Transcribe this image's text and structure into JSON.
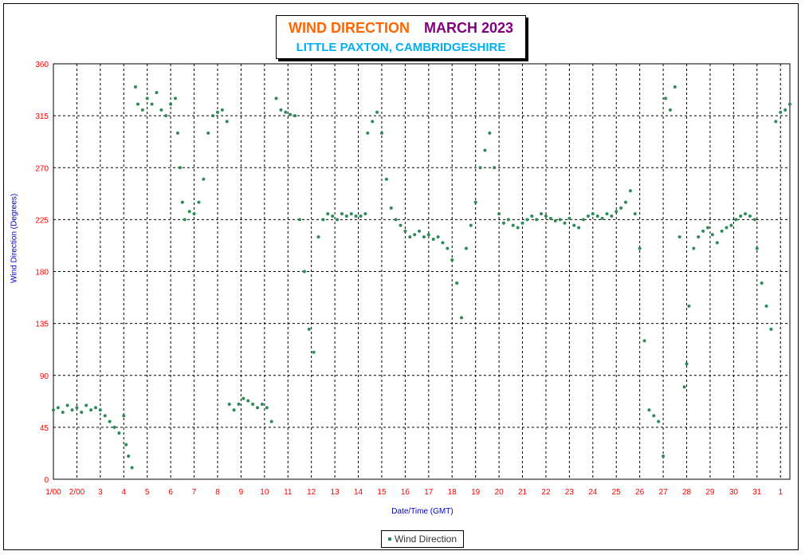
{
  "title": {
    "part1": "WIND DIRECTION",
    "part2": "MARCH 2023",
    "subtitle": "LITTLE PAXTON, CAMBRIDGESHIRE"
  },
  "colors": {
    "title_part1": "#ff6600",
    "title_part2": "#800080",
    "subtitle": "#00b0f0",
    "axis_labels": "#0000cc",
    "tick_labels": "#ff0000",
    "series": "#2e8b57"
  },
  "chart_data": {
    "type": "scatter",
    "xlabel": "Date/Time (GMT)",
    "ylabel": "Wind Direction (Degrees)",
    "ylim": [
      0,
      360
    ],
    "xlim": [
      0,
      31.4
    ],
    "y_ticks": [
      0,
      45,
      90,
      135,
      180,
      225,
      270,
      315,
      360
    ],
    "x_tick_labels": [
      "1/00",
      "2/00",
      "3",
      "4",
      "5",
      "6",
      "7",
      "8",
      "9",
      "10",
      "11",
      "12",
      "13",
      "14",
      "15",
      "16",
      "17",
      "18",
      "19",
      "20",
      "21",
      "22",
      "23",
      "24",
      "25",
      "26",
      "27",
      "28",
      "29",
      "30",
      "31",
      "1"
    ],
    "grid": true,
    "legend_position": "bottom-center",
    "series": [
      {
        "name": "Wind Direction",
        "x_units": "days since 1 March 2023 00:00",
        "points": [
          [
            0.0,
            60
          ],
          [
            0.2,
            62
          ],
          [
            0.4,
            58
          ],
          [
            0.6,
            64
          ],
          [
            0.8,
            60
          ],
          [
            1.0,
            62
          ],
          [
            1.2,
            58
          ],
          [
            1.4,
            64
          ],
          [
            1.6,
            60
          ],
          [
            1.8,
            62
          ],
          [
            2.0,
            60
          ],
          [
            2.2,
            55
          ],
          [
            2.4,
            50
          ],
          [
            2.6,
            45
          ],
          [
            2.8,
            40
          ],
          [
            3.0,
            55
          ],
          [
            3.1,
            30
          ],
          [
            3.2,
            20
          ],
          [
            3.35,
            10
          ],
          [
            3.5,
            340
          ],
          [
            3.6,
            325
          ],
          [
            3.8,
            320
          ],
          [
            4.0,
            330
          ],
          [
            4.2,
            325
          ],
          [
            4.4,
            335
          ],
          [
            4.6,
            320
          ],
          [
            4.8,
            315
          ],
          [
            5.0,
            325
          ],
          [
            5.2,
            330
          ],
          [
            5.3,
            300
          ],
          [
            5.4,
            270
          ],
          [
            5.5,
            240
          ],
          [
            5.6,
            225
          ],
          [
            5.8,
            232
          ],
          [
            6.0,
            230
          ],
          [
            6.2,
            240
          ],
          [
            6.4,
            260
          ],
          [
            6.6,
            300
          ],
          [
            6.8,
            315
          ],
          [
            7.0,
            318
          ],
          [
            7.2,
            320
          ],
          [
            7.4,
            310
          ],
          [
            7.5,
            65
          ],
          [
            7.7,
            60
          ],
          [
            7.9,
            65
          ],
          [
            8.1,
            70
          ],
          [
            8.3,
            68
          ],
          [
            8.5,
            65
          ],
          [
            8.7,
            62
          ],
          [
            8.9,
            65
          ],
          [
            9.1,
            62
          ],
          [
            9.3,
            50
          ],
          [
            9.5,
            330
          ],
          [
            9.7,
            320
          ],
          [
            9.9,
            318
          ],
          [
            10.1,
            316
          ],
          [
            10.3,
            315
          ],
          [
            10.5,
            225
          ],
          [
            10.7,
            180
          ],
          [
            10.9,
            130
          ],
          [
            11.1,
            110
          ],
          [
            11.3,
            210
          ],
          [
            11.5,
            225
          ],
          [
            11.7,
            230
          ],
          [
            11.9,
            228
          ],
          [
            12.1,
            225
          ],
          [
            12.3,
            230
          ],
          [
            12.5,
            228
          ],
          [
            12.7,
            230
          ],
          [
            12.9,
            228
          ],
          [
            13.1,
            228
          ],
          [
            13.3,
            230
          ],
          [
            13.4,
            300
          ],
          [
            13.6,
            310
          ],
          [
            13.8,
            318
          ],
          [
            14.0,
            300
          ],
          [
            14.2,
            260
          ],
          [
            14.4,
            235
          ],
          [
            14.6,
            225
          ],
          [
            14.8,
            220
          ],
          [
            15.0,
            215
          ],
          [
            15.2,
            210
          ],
          [
            15.4,
            212
          ],
          [
            15.6,
            215
          ],
          [
            15.8,
            210
          ],
          [
            16.0,
            212
          ],
          [
            16.2,
            208
          ],
          [
            16.4,
            210
          ],
          [
            16.6,
            205
          ],
          [
            16.8,
            200
          ],
          [
            17.0,
            190
          ],
          [
            17.2,
            170
          ],
          [
            17.4,
            140
          ],
          [
            17.6,
            200
          ],
          [
            17.8,
            220
          ],
          [
            18.0,
            240
          ],
          [
            18.2,
            270
          ],
          [
            18.4,
            285
          ],
          [
            18.6,
            300
          ],
          [
            18.8,
            270
          ],
          [
            19.0,
            230
          ],
          [
            19.2,
            222
          ],
          [
            19.4,
            225
          ],
          [
            19.6,
            220
          ],
          [
            19.8,
            218
          ],
          [
            20.0,
            222
          ],
          [
            20.2,
            225
          ],
          [
            20.4,
            228
          ],
          [
            20.6,
            225
          ],
          [
            20.8,
            230
          ],
          [
            21.0,
            228
          ],
          [
            21.2,
            226
          ],
          [
            21.4,
            224
          ],
          [
            21.6,
            225
          ],
          [
            21.8,
            222
          ],
          [
            22.0,
            226
          ],
          [
            22.2,
            220
          ],
          [
            22.4,
            218
          ],
          [
            22.6,
            225
          ],
          [
            22.8,
            228
          ],
          [
            23.0,
            230
          ],
          [
            23.2,
            228
          ],
          [
            23.4,
            226
          ],
          [
            23.6,
            230
          ],
          [
            23.8,
            228
          ],
          [
            24.0,
            232
          ],
          [
            24.2,
            235
          ],
          [
            24.4,
            240
          ],
          [
            24.6,
            250
          ],
          [
            24.8,
            230
          ],
          [
            25.0,
            200
          ],
          [
            25.2,
            120
          ],
          [
            25.4,
            60
          ],
          [
            25.6,
            55
          ],
          [
            25.8,
            50
          ],
          [
            26.0,
            20
          ],
          [
            26.1,
            330
          ],
          [
            26.3,
            320
          ],
          [
            26.5,
            340
          ],
          [
            26.7,
            210
          ],
          [
            26.9,
            80
          ],
          [
            27.0,
            100
          ],
          [
            27.1,
            150
          ],
          [
            27.3,
            200
          ],
          [
            27.5,
            210
          ],
          [
            27.7,
            215
          ],
          [
            27.9,
            218
          ],
          [
            28.1,
            212
          ],
          [
            28.3,
            205
          ],
          [
            28.5,
            215
          ],
          [
            28.7,
            218
          ],
          [
            28.9,
            220
          ],
          [
            29.1,
            225
          ],
          [
            29.3,
            228
          ],
          [
            29.5,
            230
          ],
          [
            29.7,
            228
          ],
          [
            29.9,
            225
          ],
          [
            30.0,
            200
          ],
          [
            30.2,
            170
          ],
          [
            30.4,
            150
          ],
          [
            30.6,
            130
          ],
          [
            30.8,
            310
          ],
          [
            31.0,
            318
          ],
          [
            31.2,
            320
          ],
          [
            31.4,
            325
          ]
        ]
      }
    ]
  },
  "legend": {
    "label": "Wind Direction"
  }
}
